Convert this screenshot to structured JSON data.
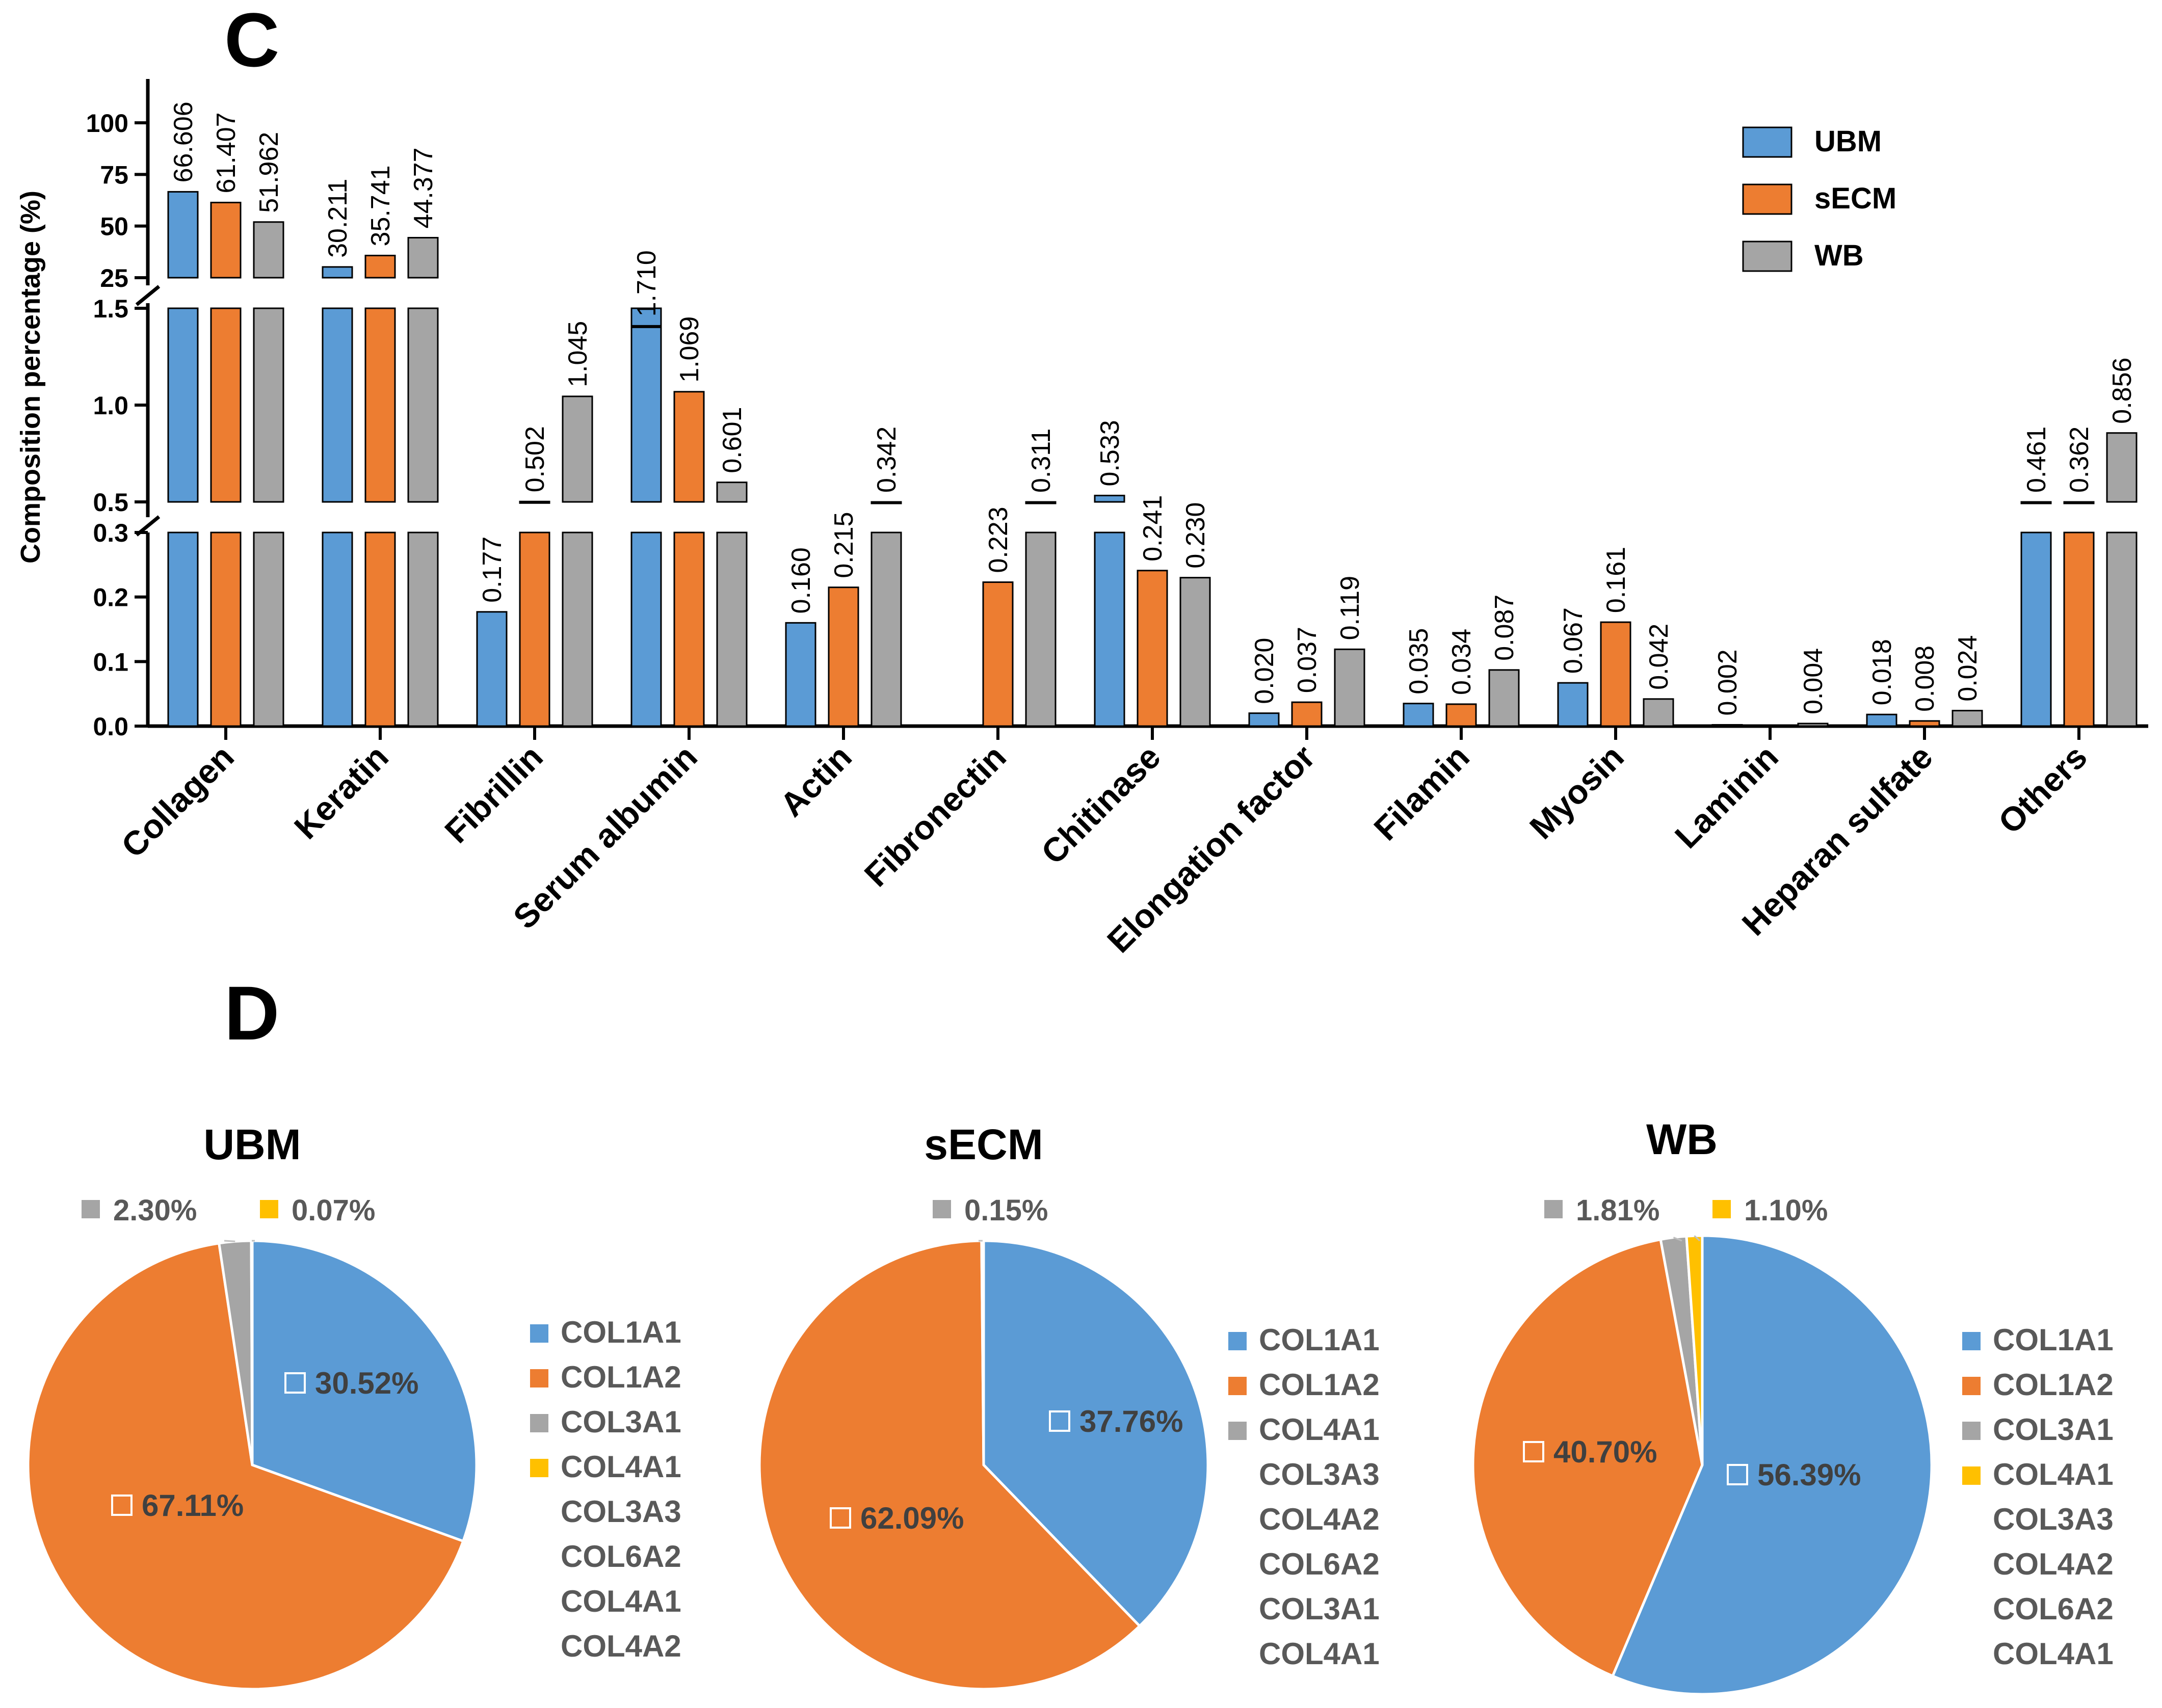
{
  "colors": {
    "UBM": "#5B9BD5",
    "sECM": "#ED7D31",
    "WB": "#A5A5A5",
    "yellow": "#FFC000",
    "text": "#000000",
    "legendText": "#595959"
  },
  "panels": {
    "c": "C",
    "d": "D"
  },
  "chart_data": [
    {
      "type": "bar",
      "id": "composition",
      "ylabel": "Composition percentage (%)",
      "y_axis_segments": [
        {
          "range": [
            0,
            0.3
          ],
          "ticks": [
            "0.0",
            "0.1",
            "0.2",
            "0.3"
          ]
        },
        {
          "range": [
            0.5,
            1.5
          ],
          "ticks": [
            "0.5",
            "1.0",
            "1.5"
          ]
        },
        {
          "range": [
            25,
            120
          ],
          "ticks": [
            "25",
            "50",
            "75",
            "100"
          ]
        }
      ],
      "axis_break": true,
      "legend_position": "top-right",
      "categories": [
        "Collagen",
        "Keratin",
        "Fibrillin",
        "Serum albumin",
        "Actin",
        "Fibronectin",
        "Chitinase",
        "Elongation factor",
        "Filamin",
        "Myosin",
        "Laminin",
        "Heparan sulfate",
        "Others"
      ],
      "series": [
        {
          "name": "UBM",
          "values": [
            66.606,
            30.211,
            0.177,
            1.71,
            0.16,
            null,
            0.533,
            0.02,
            0.035,
            0.067,
            0.002,
            0.018,
            0.461
          ]
        },
        {
          "name": "sECM",
          "values": [
            61.407,
            35.741,
            0.502,
            1.069,
            0.215,
            0.223,
            0.241,
            0.037,
            0.034,
            0.161,
            null,
            0.008,
            0.362
          ]
        },
        {
          "name": "WB",
          "values": [
            51.962,
            44.377,
            1.045,
            0.601,
            0.342,
            0.311,
            0.23,
            0.119,
            0.087,
            0.042,
            0.004,
            0.024,
            0.856
          ]
        }
      ],
      "labels": [
        [
          "66.606",
          "61.407",
          "51.962"
        ],
        [
          "30.211",
          "35.741",
          "44.377"
        ],
        [
          "0.177",
          "0.502",
          "1.045"
        ],
        [
          "1.710",
          "1.069",
          "0.601"
        ],
        [
          "0.160",
          "0.215",
          "0.342"
        ],
        [
          null,
          "0.223",
          "0.311"
        ],
        [
          "0.533",
          "0.241",
          "0.230"
        ],
        [
          "0.020",
          "0.037",
          "0.119"
        ],
        [
          "0.035",
          "0.034",
          "0.087"
        ],
        [
          "0.067",
          "0.161",
          "0.042"
        ],
        [
          "0.002",
          null,
          "0.004"
        ],
        [
          "0.018",
          "0.008",
          "0.024"
        ],
        [
          "0.461",
          "0.362",
          "0.856"
        ]
      ]
    },
    {
      "type": "pie",
      "id": "pie-ubm",
      "title": "UBM",
      "slices": [
        {
          "label": "COL1A1",
          "value": 30.52,
          "text": "30.52%",
          "color": "#5B9BD5"
        },
        {
          "label": "COL1A2",
          "value": 67.11,
          "text": "67.11%",
          "color": "#ED7D31"
        },
        {
          "label": "COL3A1",
          "value": 2.3,
          "text": "2.30%",
          "color": "#A5A5A5"
        },
        {
          "label": "COL4A1",
          "value": 0.07,
          "text": "0.07%",
          "color": "#FFC000"
        }
      ],
      "legend": [
        "COL1A1",
        "COL1A2",
        "COL3A1",
        "COL4A1",
        "COL3A3",
        "COL6A2",
        "COL4A1",
        "COL4A2"
      ]
    },
    {
      "type": "pie",
      "id": "pie-secm",
      "title": "sECM",
      "slices": [
        {
          "label": "COL1A1",
          "value": 37.76,
          "text": "37.76%",
          "color": "#5B9BD5"
        },
        {
          "label": "COL1A2",
          "value": 62.09,
          "text": "62.09%",
          "color": "#ED7D31"
        },
        {
          "label": "COL4A1",
          "value": 0.15,
          "text": "0.15%",
          "color": "#A5A5A5"
        }
      ],
      "legend": [
        "COL1A1",
        "COL1A2",
        "COL4A1",
        "COL3A3",
        "COL4A2",
        "COL6A2",
        "COL3A1",
        "COL4A1"
      ]
    },
    {
      "type": "pie",
      "id": "pie-wb",
      "title": "WB",
      "slices": [
        {
          "label": "COL1A1",
          "value": 56.39,
          "text": "56.39%",
          "color": "#5B9BD5"
        },
        {
          "label": "COL1A2",
          "value": 40.7,
          "text": "40.70%",
          "color": "#ED7D31"
        },
        {
          "label": "COL3A1",
          "value": 1.81,
          "text": "1.81%",
          "color": "#A5A5A5"
        },
        {
          "label": "COL4A1",
          "value": 1.1,
          "text": "1.10%",
          "color": "#FFC000"
        }
      ],
      "legend": [
        "COL1A1",
        "COL1A2",
        "COL3A1",
        "COL4A1",
        "COL3A3",
        "COL4A2",
        "COL6A2",
        "COL4A1"
      ]
    }
  ]
}
